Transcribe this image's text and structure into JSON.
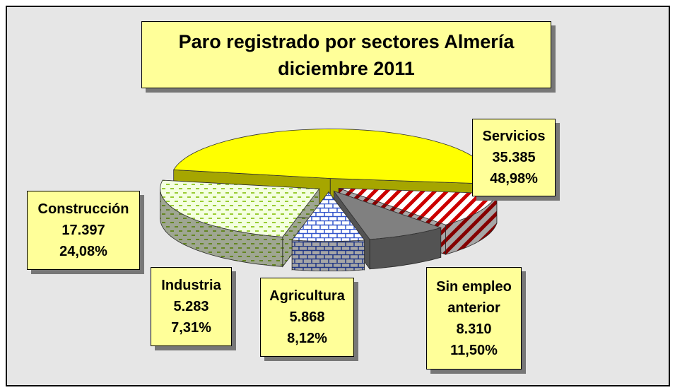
{
  "chart_data": {
    "type": "pie3d",
    "title": [
      "Paro registrado por sectores Almería",
      "diciembre 2011"
    ],
    "categories": [
      "Servicios",
      "Sin empleo anterior",
      "Agricultura",
      "Industria",
      "Construcción"
    ],
    "values": [
      35385,
      8310,
      5868,
      5283,
      17397
    ],
    "value_labels": [
      "35.385",
      "8.310",
      "5.868",
      "5.283",
      "17.397"
    ],
    "percents": [
      48.98,
      11.5,
      8.12,
      7.31,
      24.08
    ],
    "percent_labels": [
      "48,98%",
      "11,50%",
      "8,12%",
      "7,31%",
      "24,08%"
    ],
    "colors": [
      "#ffff00",
      "#cc0000",
      "#808080",
      "#3355cc",
      "#99cc33"
    ],
    "patterns": [
      "solid",
      "diagonal",
      "solid",
      "brick",
      "dash"
    ]
  }
}
